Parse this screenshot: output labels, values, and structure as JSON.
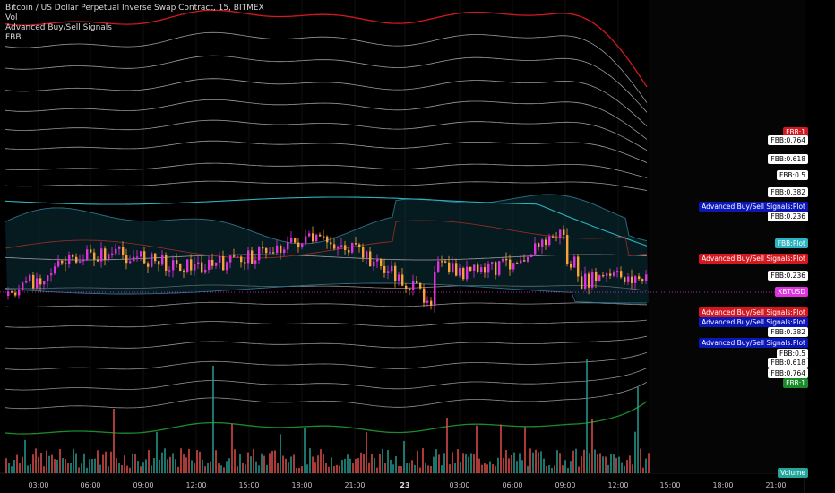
{
  "header": {
    "title": "Bitcoin / US Dollar Perpetual Inverse Swap Contract, 15, BITMEX",
    "indicators": [
      "Vol",
      "Advanced Buy/Sell Signals",
      "FBB"
    ]
  },
  "price_scale_labels": [
    {
      "text": "FBB:1",
      "bg": "#d3181f",
      "fg": "#ffffff",
      "y": 147
    },
    {
      "text": "FBB:0.764",
      "bg": "#ffffff",
      "fg": "#000000",
      "y": 156
    },
    {
      "text": "FBB:0.618",
      "bg": "#ffffff",
      "fg": "#000000",
      "y": 177
    },
    {
      "text": "FBB:0.5",
      "bg": "#ffffff",
      "fg": "#000000",
      "y": 195
    },
    {
      "text": "FBB:0.382",
      "bg": "#ffffff",
      "fg": "#000000",
      "y": 214
    },
    {
      "text": "Advanced Buy/Sell Signals:Plot",
      "bg": "#0b17b8",
      "fg": "#ffffff",
      "y": 230
    },
    {
      "text": "FBB:0.236",
      "bg": "#ffffff",
      "fg": "#000000",
      "y": 241
    },
    {
      "text": "FBB:Plot",
      "bg": "#2bb3c0",
      "fg": "#ffffff",
      "y": 271
    },
    {
      "text": "Advanced Buy/Sell Signals:Plot",
      "bg": "#d3181f",
      "fg": "#ffffff",
      "y": 288
    },
    {
      "text": "FBB:0.236",
      "bg": "#ffffff",
      "fg": "#000000",
      "y": 307
    },
    {
      "text": "XBTUSD",
      "bg": "#e031e0",
      "fg": "#ffffff",
      "y": 325
    },
    {
      "text": "Advanced Buy/Sell Signals:Plot",
      "bg": "#d3181f",
      "fg": "#ffffff",
      "y": 348
    },
    {
      "text": "Advanced Buy/Sell Signals:Plot",
      "bg": "#0b17b8",
      "fg": "#ffffff",
      "y": 359
    },
    {
      "text": "FBB:0.382",
      "bg": "#ffffff",
      "fg": "#000000",
      "y": 370
    },
    {
      "text": "Advanced Buy/Sell Signals:Plot",
      "bg": "#0b17b8",
      "fg": "#ffffff",
      "y": 382
    },
    {
      "text": "FBB:0.5",
      "bg": "#ffffff",
      "fg": "#000000",
      "y": 394
    },
    {
      "text": "FBB:0.618",
      "bg": "#ffffff",
      "fg": "#000000",
      "y": 404
    },
    {
      "text": "FBB:0.764",
      "bg": "#ffffff",
      "fg": "#000000",
      "y": 416
    },
    {
      "text": "FBB:1",
      "bg": "#1c8a2a",
      "fg": "#ffffff",
      "y": 427
    },
    {
      "text": "Volume",
      "bg": "#26a69a",
      "fg": "#ffffff",
      "y": 527
    }
  ],
  "chart_data": {
    "type": "candlestick",
    "x_ticks": [
      "03:00",
      "06:00",
      "09:00",
      "12:00",
      "15:00",
      "18:00",
      "21:00",
      "23",
      "03:00",
      "06:00",
      "09:00",
      "12:00",
      "15:00",
      "18:00",
      "21:00"
    ],
    "colors": {
      "up": "#e031e0",
      "down": "#f7a23b",
      "band": "#cfcfcf",
      "upper1": "#d3181f",
      "lower1": "#1c8a2a",
      "basis": "#2bb3c0",
      "vol_up": "#26a69a",
      "vol_down": "#ef5350"
    }
  }
}
